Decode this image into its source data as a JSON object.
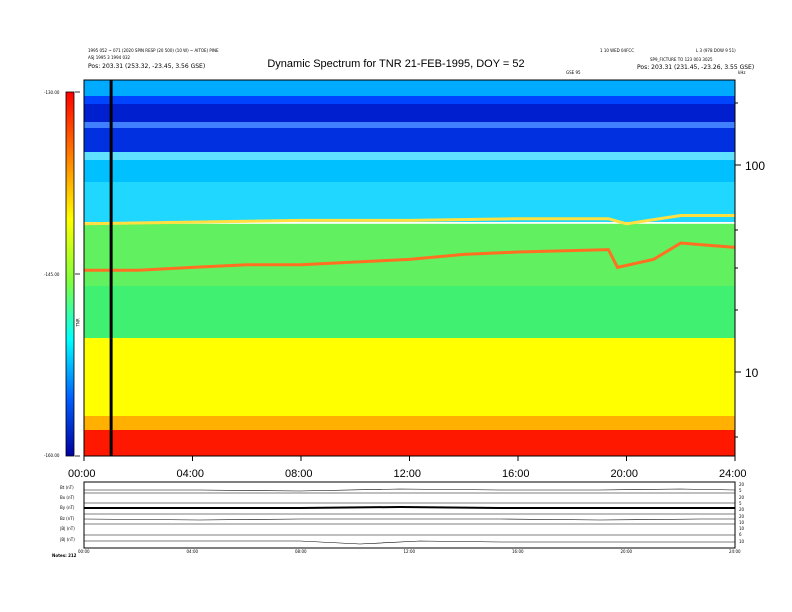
{
  "header": {
    "title": "Dynamic Spectrum for TNR 21-FEB-1995, DOY = 52",
    "info_left": [
      "1995 052 ~ 071 (2020 SPIN RESP (20 500) (10 W) ~ AITOE) PINE",
      "ASJ 1995 3 1994 032",
      "Pos: 203.31 (253.32, -23.45, 3.56 GSE)"
    ],
    "info_right": [
      "1 10 WED 04FCC",
      "L 3 (978 DOW 9 51)",
      "SP9_FICTURE TO 123 003 3025",
      "Pos: 203.31 (231.45, -23.26, 3.55 GSE)"
    ],
    "info_center": "GSE 95"
  },
  "colorbar": {
    "tick_labels": [
      "-130.00",
      "-145.00",
      "-160.00"
    ],
    "unit": "TNR"
  },
  "freq_axis": {
    "unit": "kHz",
    "tick_labels": [
      "100",
      "10"
    ]
  },
  "time_axis": {
    "tick_labels": [
      "00:00",
      "04:00",
      "08:00",
      "12:00",
      "16:00",
      "20:00",
      "24:00"
    ]
  },
  "bottom_panels": {
    "left_labels": [
      "Bt (nT)",
      "Bx (nT)",
      "By (nT)",
      "Bz (nT)",
      "|B| (nT)",
      "|B| (nT)"
    ],
    "right_labels": [
      "20",
      "5",
      "20",
      "5",
      "20",
      "20",
      "10",
      "10",
      "6",
      "10"
    ],
    "axis_labels": [
      "00:00",
      "04:00",
      "08:00",
      "12:00",
      "16:00",
      "20:00",
      "24:00"
    ],
    "footer": "Notes: 212"
  },
  "chart_data": {
    "type": "heatmap",
    "title": "Dynamic Spectrum for TNR 21-FEB-1995, DOY = 52",
    "x_range": [
      "00:00",
      "24:00"
    ],
    "y_scale": "log",
    "y_unit": "kHz",
    "color_range": [
      -160,
      -130
    ],
    "color_scale": [
      "#0000b0",
      "#0040ff",
      "#00c8ff",
      "#40ff80",
      "#ffff00",
      "#ff8000",
      "#ff0000"
    ],
    "cursor_time": "01:00",
    "upper_band_edge_kHz": [
      {
        "t": "00:00",
        "f": 52
      },
      {
        "t": "04:00",
        "f": 53
      },
      {
        "t": "08:00",
        "f": 54
      },
      {
        "t": "12:00",
        "f": 54
      },
      {
        "t": "16:00",
        "f": 55
      },
      {
        "t": "19:20",
        "f": 55
      },
      {
        "t": "20:00",
        "f": 52
      },
      {
        "t": "22:00",
        "f": 57
      },
      {
        "t": "24:00",
        "f": 57
      }
    ],
    "emission_line_kHz": [
      {
        "t": "00:00",
        "f": 31
      },
      {
        "t": "02:00",
        "f": 31
      },
      {
        "t": "04:00",
        "f": 32
      },
      {
        "t": "06:00",
        "f": 33
      },
      {
        "t": "08:00",
        "f": 33
      },
      {
        "t": "10:00",
        "f": 34
      },
      {
        "t": "12:00",
        "f": 35
      },
      {
        "t": "14:00",
        "f": 37
      },
      {
        "t": "16:00",
        "f": 38
      },
      {
        "t": "19:20",
        "f": 39
      },
      {
        "t": "19:40",
        "f": 32
      },
      {
        "t": "21:00",
        "f": 35
      },
      {
        "t": "22:00",
        "f": 42
      },
      {
        "t": "23:00",
        "f": 41
      },
      {
        "t": "24:00",
        "f": 40
      }
    ]
  }
}
